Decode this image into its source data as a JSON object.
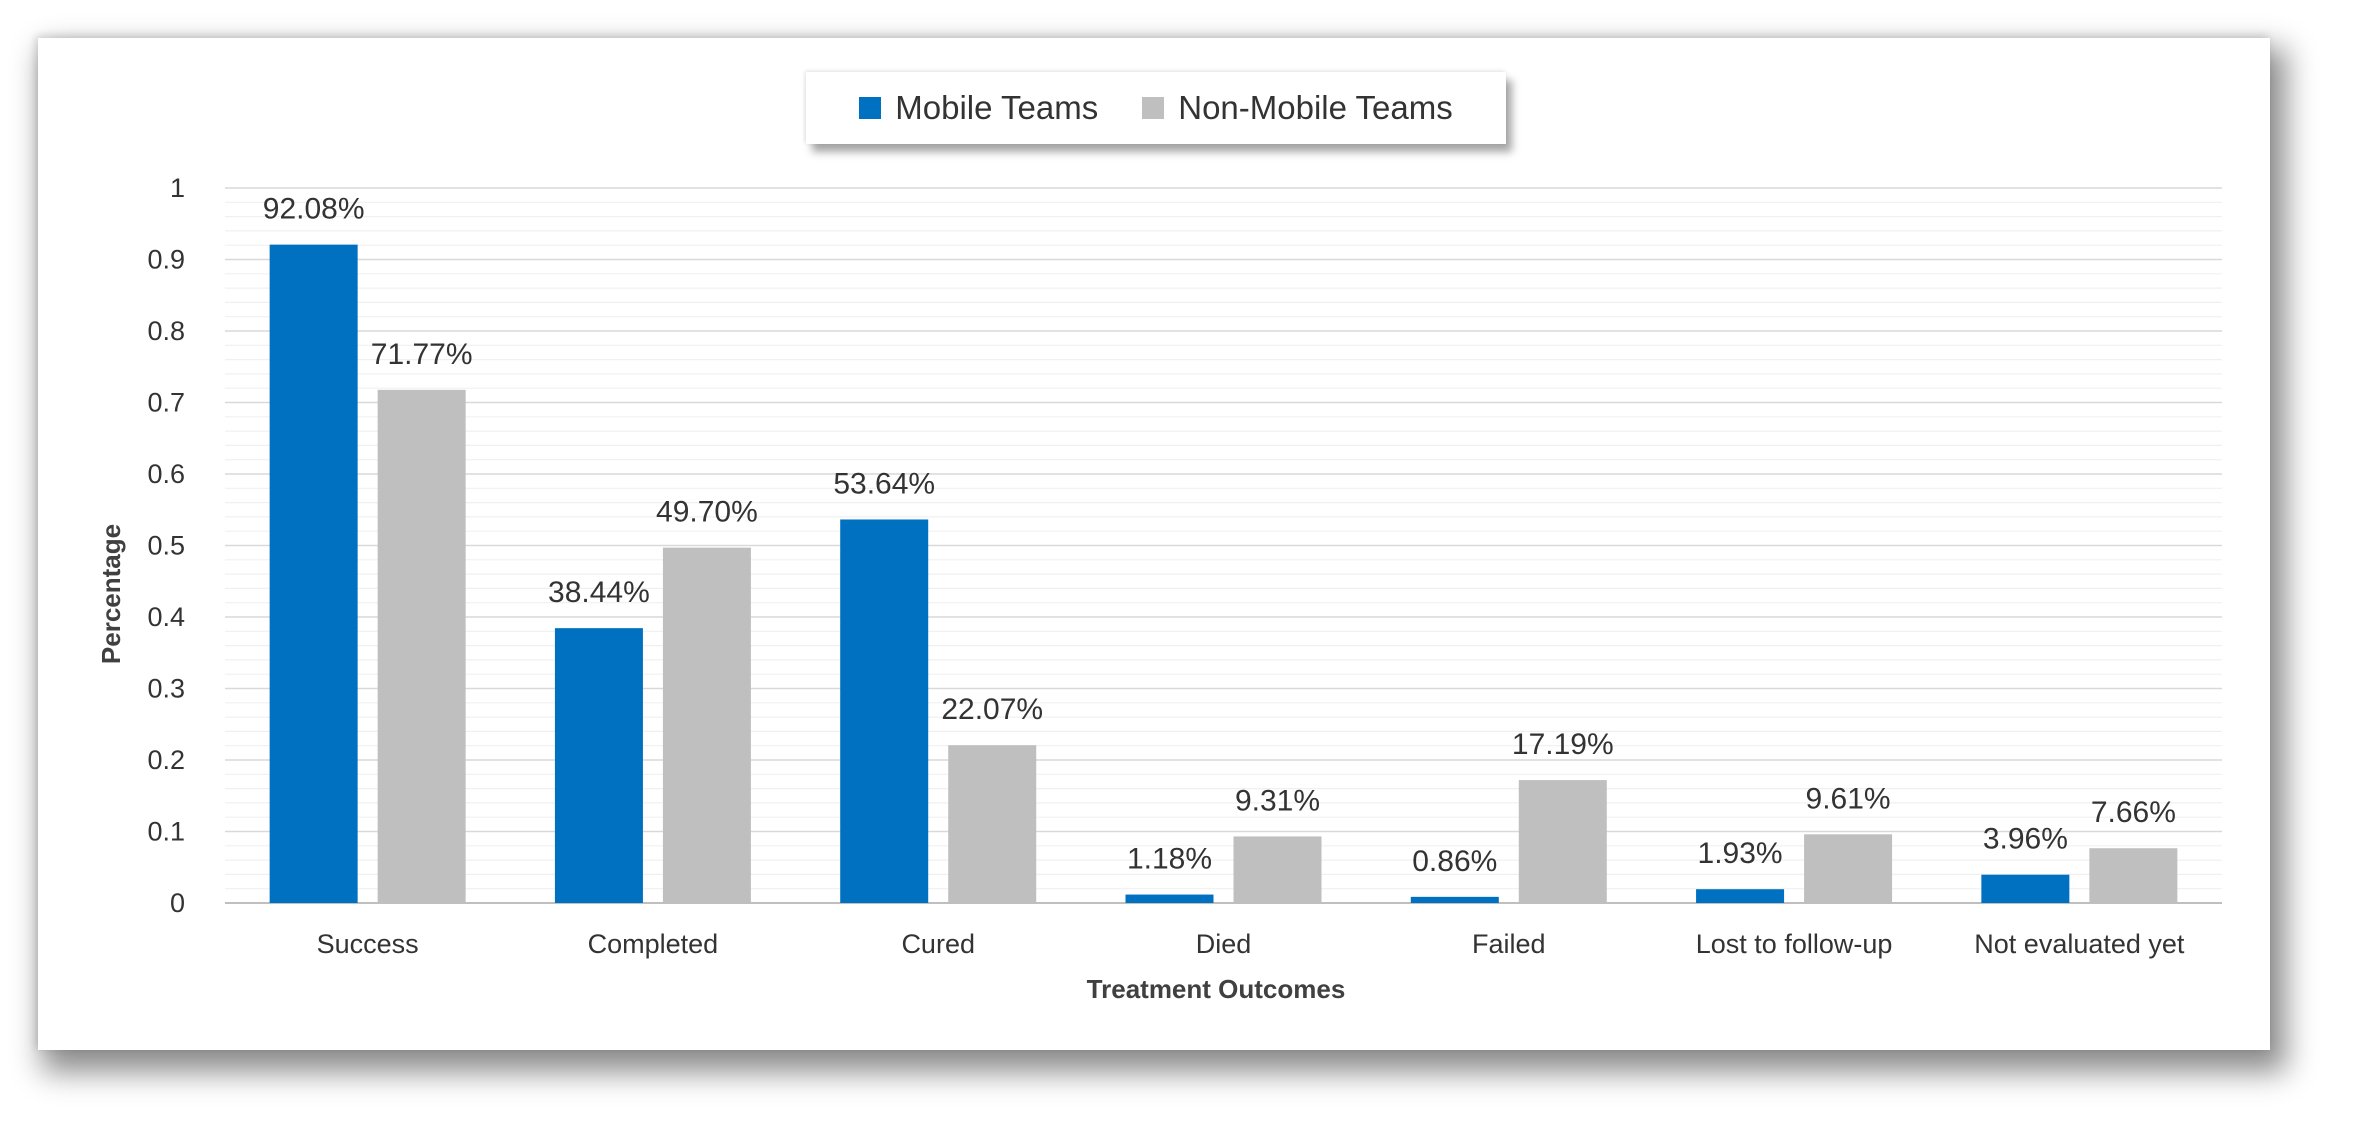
{
  "chart_data": {
    "type": "bar",
    "categories": [
      "Success",
      "Completed",
      "Cured",
      "Died",
      "Failed",
      "Lost to follow-up",
      "Not evaluated yet"
    ],
    "series": [
      {
        "name": "Mobile Teams",
        "color": "#0070C0",
        "values": [
          0.9208,
          0.3844,
          0.5364,
          0.0118,
          0.0086,
          0.0193,
          0.0396
        ],
        "labels": [
          "92.08%",
          "38.44%",
          "53.64%",
          "1.18%",
          "0.86%",
          "1.93%",
          "3.96%"
        ]
      },
      {
        "name": "Non-Mobile Teams",
        "color": "#BFBFBF",
        "values": [
          0.7177,
          0.497,
          0.2207,
          0.0931,
          0.1719,
          0.0961,
          0.0766
        ],
        "labels": [
          "71.77%",
          "49.70%",
          "22.07%",
          "9.31%",
          "17.19%",
          "9.61%",
          "7.66%"
        ]
      }
    ],
    "yticks": [
      "0",
      "0.1",
      "0.2",
      "0.3",
      "0.4",
      "0.5",
      "0.6",
      "0.7",
      "0.8",
      "0.9",
      "1"
    ],
    "ylim": [
      0,
      1
    ],
    "xlabel": "Treatment Outcomes",
    "ylabel": "Percentage",
    "grid": true,
    "legend_position": "top-center"
  }
}
